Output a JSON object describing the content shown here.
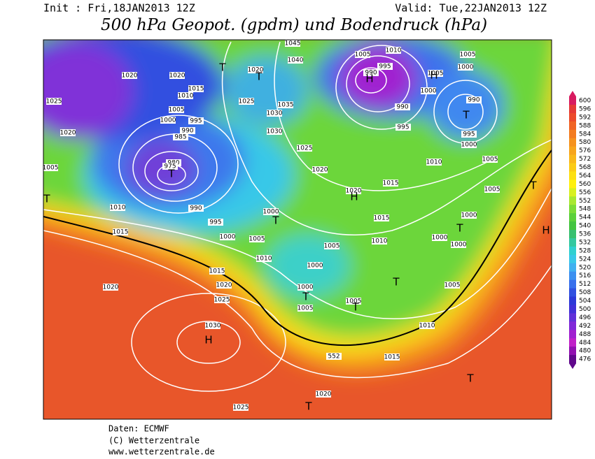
{
  "header": {
    "init": "Init : Fri,18JAN2013 12Z",
    "valid": "Valid: Tue,22JAN2013 12Z",
    "title": "500 hPa Geopot. (gpdm) und Bodendruck (hPa)"
  },
  "map": {
    "isobar_labels": [
      "1045",
      "1010",
      "1005",
      "1005",
      "1040",
      "1020",
      "1020",
      "1020",
      "995",
      "990",
      "1005",
      "1000",
      "1000",
      "1015",
      "1010",
      "1025",
      "1025",
      "1035",
      "1030",
      "990",
      "990",
      "1005",
      "995",
      "1000",
      "990",
      "985",
      "1020",
      "1030",
      "995",
      "995",
      "1000",
      "980",
      "975",
      "1025",
      "1010",
      "1020",
      "1005",
      "1005",
      "1015",
      "1020",
      "1005",
      "1010",
      "990",
      "1000",
      "995",
      "1015",
      "1000",
      "1015",
      "1000",
      "1005",
      "1005",
      "1010",
      "1000",
      "1000",
      "1010",
      "1000",
      "1015",
      "1020",
      "1020",
      "1000",
      "1005",
      "1025",
      "1005",
      "1005",
      "1010",
      "1030",
      "552",
      "1015",
      "1020",
      "1025"
    ],
    "centers": [
      "T",
      "T",
      "H",
      "H",
      "T",
      "T",
      "T",
      "T",
      "H",
      "T",
      "T",
      "H",
      "T",
      "T",
      "T",
      "H",
      "T",
      "T"
    ]
  },
  "colorbar": {
    "labels": [
      600,
      596,
      592,
      588,
      584,
      580,
      576,
      572,
      568,
      564,
      560,
      556,
      552,
      548,
      544,
      540,
      536,
      532,
      528,
      524,
      520,
      516,
      512,
      508,
      504,
      500,
      496,
      492,
      488,
      484,
      480,
      476
    ],
    "colors": [
      "#d81b60",
      "#e53935",
      "#ec4a2a",
      "#f06424",
      "#f37c20",
      "#f5921e",
      "#f7a51c",
      "#f9b81a",
      "#fbcb16",
      "#fde012",
      "#fff00e",
      "#d8f020",
      "#a8e830",
      "#7cdc36",
      "#5cd03a",
      "#44c440",
      "#38c070",
      "#34c8a0",
      "#30d0d0",
      "#38c8e8",
      "#40b0f0",
      "#3c90f0",
      "#3870ec",
      "#3050e0",
      "#2c38d8",
      "#4030d8",
      "#6030d8",
      "#8028d8",
      "#a020d0",
      "#c020c8",
      "#9010b0",
      "#60088c"
    ]
  },
  "footer": {
    "lines": [
      "Daten: ECMWF",
      "(C) Wetterzentrale",
      "www.wetterzentrale.de"
    ]
  }
}
